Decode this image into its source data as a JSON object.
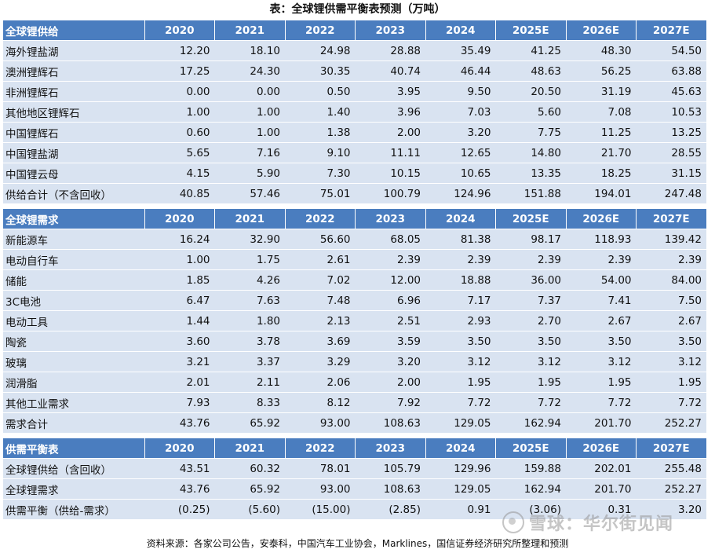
{
  "title": "表：全球锂供需平衡表预测（万吨）",
  "years": [
    "2020",
    "2021",
    "2022",
    "2023",
    "2024",
    "2025E",
    "2026E",
    "2027E"
  ],
  "sections": [
    {
      "header": "全球锂供给",
      "rows": [
        {
          "label": "海外锂盐湖",
          "values": [
            "12.20",
            "18.10",
            "24.98",
            "28.88",
            "35.49",
            "41.25",
            "48.30",
            "54.50"
          ]
        },
        {
          "label": "澳洲锂辉石",
          "values": [
            "17.25",
            "24.30",
            "30.35",
            "40.74",
            "46.44",
            "48.63",
            "56.25",
            "63.88"
          ]
        },
        {
          "label": "非洲锂辉石",
          "values": [
            "0.00",
            "0.00",
            "0.50",
            "3.95",
            "9.50",
            "20.50",
            "31.19",
            "45.63"
          ]
        },
        {
          "label": "其他地区锂辉石",
          "values": [
            "1.00",
            "1.00",
            "1.40",
            "3.96",
            "7.03",
            "5.60",
            "7.08",
            "10.53"
          ]
        },
        {
          "label": "中国锂辉石",
          "values": [
            "0.60",
            "1.00",
            "1.38",
            "2.00",
            "3.20",
            "7.75",
            "11.25",
            "13.25"
          ]
        },
        {
          "label": "中国锂盐湖",
          "values": [
            "5.65",
            "7.16",
            "9.10",
            "11.11",
            "12.65",
            "14.80",
            "21.70",
            "28.55"
          ]
        },
        {
          "label": "中国锂云母",
          "values": [
            "4.15",
            "5.90",
            "7.30",
            "10.15",
            "10.65",
            "13.35",
            "18.25",
            "31.15"
          ]
        },
        {
          "label": "供给合计（不含回收）",
          "values": [
            "40.85",
            "57.46",
            "75.01",
            "100.79",
            "124.96",
            "151.88",
            "194.01",
            "247.48"
          ]
        }
      ]
    },
    {
      "header": "全球锂需求",
      "rows": [
        {
          "label": "新能源车",
          "values": [
            "16.24",
            "32.90",
            "56.60",
            "68.05",
            "81.38",
            "98.17",
            "118.93",
            "139.42"
          ]
        },
        {
          "label": "电动自行车",
          "values": [
            "1.00",
            "1.75",
            "2.61",
            "2.39",
            "2.39",
            "2.39",
            "2.39",
            "2.39"
          ]
        },
        {
          "label": "储能",
          "values": [
            "1.85",
            "4.26",
            "7.02",
            "12.00",
            "18.88",
            "36.00",
            "54.00",
            "84.00"
          ]
        },
        {
          "label": "3C电池",
          "values": [
            "6.47",
            "7.63",
            "7.48",
            "6.96",
            "7.17",
            "7.37",
            "7.41",
            "7.50"
          ]
        },
        {
          "label": "电动工具",
          "values": [
            "1.44",
            "1.80",
            "2.13",
            "2.51",
            "2.93",
            "2.70",
            "2.67",
            "2.67"
          ]
        },
        {
          "label": "陶瓷",
          "values": [
            "3.60",
            "3.78",
            "3.69",
            "3.59",
            "3.50",
            "3.50",
            "3.50",
            "3.50"
          ]
        },
        {
          "label": "玻璃",
          "values": [
            "3.21",
            "3.37",
            "3.29",
            "3.20",
            "3.12",
            "3.12",
            "3.12",
            "3.12"
          ]
        },
        {
          "label": "润滑脂",
          "values": [
            "2.01",
            "2.11",
            "2.06",
            "2.00",
            "1.95",
            "1.95",
            "1.95",
            "1.95"
          ]
        },
        {
          "label": "其他工业需求",
          "values": [
            "7.93",
            "8.33",
            "8.12",
            "7.92",
            "7.72",
            "7.72",
            "7.72",
            "7.72"
          ]
        },
        {
          "label": "需求合计",
          "values": [
            "43.76",
            "65.92",
            "93.00",
            "108.63",
            "129.05",
            "162.94",
            "201.70",
            "252.27"
          ]
        }
      ]
    },
    {
      "header": "供需平衡表",
      "rows": [
        {
          "label": "全球锂供给（含回收）",
          "values": [
            "43.51",
            "60.32",
            "78.01",
            "105.79",
            "129.96",
            "159.88",
            "202.01",
            "255.48"
          ]
        },
        {
          "label": "全球锂需求",
          "values": [
            "43.76",
            "65.92",
            "93.00",
            "108.63",
            "129.05",
            "162.94",
            "201.70",
            "252.27"
          ]
        },
        {
          "label": "供需平衡（供给-需求）",
          "values": [
            "(0.25)",
            "(5.60)",
            "(15.00)",
            "(2.85)",
            "0.91",
            "(3.06)",
            "0.31",
            "3.20"
          ]
        }
      ]
    }
  ],
  "source": "资料来源：各家公司公告，安泰科，中国汽车工业协会，Marklines，国信证券经济研究所整理和预测",
  "watermark": "雪球：华尔街见闻"
}
